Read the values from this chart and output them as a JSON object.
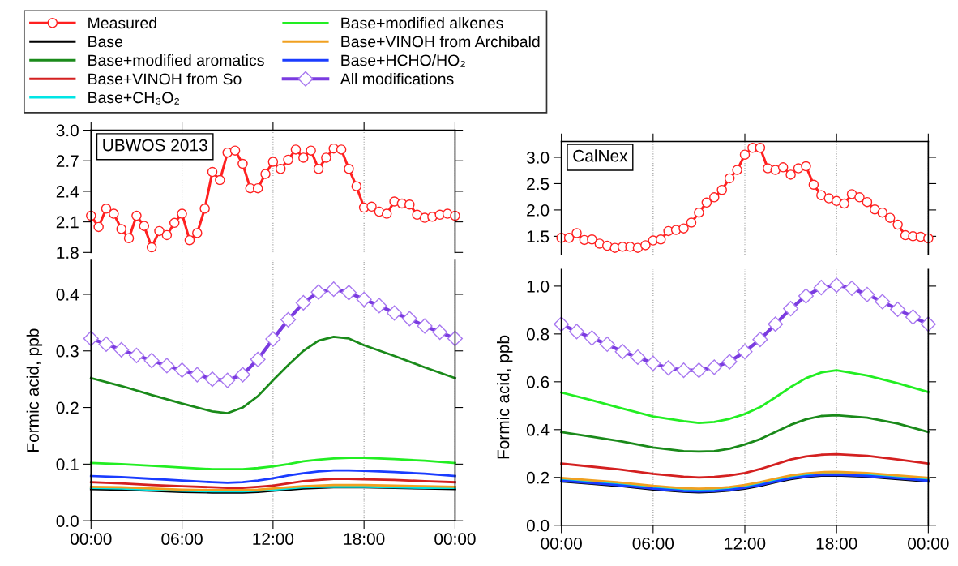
{
  "chart_data": [
    {
      "type": "line",
      "annotations": [
        "UBWOS 2013"
      ],
      "xlim": [
        0,
        24
      ],
      "xticks": [
        0,
        6,
        12,
        18,
        24
      ],
      "ylim": [
        1.8,
        3.0
      ],
      "yticks": [
        1.8,
        2.1,
        2.4,
        2.7,
        {
          "value": 3,
          "label": "3.0"
        }
      ],
      "tick_labels": "y",
      "grid": "x",
      "legend": "top left",
      "line_style": "solid",
      "series": [
        {
          "name": "Measured",
          "color": "#ff2020",
          "marker": "circle",
          "x": [
            0,
            0.5,
            1,
            1.5,
            2,
            2.5,
            3,
            3.5,
            4,
            4.5,
            5,
            5.5,
            6,
            6.5,
            7,
            7.5,
            8,
            8.5,
            9,
            9.5,
            10,
            10.5,
            11,
            11.5,
            12,
            12.5,
            13,
            13.5,
            14,
            14.5,
            15,
            15.5,
            16,
            16.5,
            17,
            17.5,
            18,
            18.5,
            19,
            19.5,
            20,
            20.5,
            21,
            21.5,
            22,
            22.5,
            23,
            23.5,
            24
          ],
          "values": [
            2.16,
            2.05,
            2.23,
            2.18,
            2.03,
            1.94,
            2.16,
            2.06,
            1.85,
            2.01,
            1.97,
            2.09,
            2.18,
            1.92,
            1.99,
            2.23,
            2.59,
            2.51,
            2.78,
            2.8,
            2.67,
            2.43,
            2.43,
            2.57,
            2.69,
            2.62,
            2.71,
            2.81,
            2.73,
            2.8,
            2.62,
            2.73,
            2.82,
            2.81,
            2.62,
            2.45,
            2.24,
            2.25,
            2.2,
            2.18,
            2.3,
            2.28,
            2.27,
            2.17,
            2.14,
            2.15,
            2.17,
            2.18,
            2.16
          ]
        }
      ]
    },
    {
      "type": "line",
      "ylabel": "Formic acid, ppb",
      "xlim": [
        0,
        24
      ],
      "xticks": [
        {
          "value": 0,
          "label": "00:00"
        },
        {
          "value": 6,
          "label": "06:00"
        },
        {
          "value": 12,
          "label": "12:00"
        },
        {
          "value": 18,
          "label": "18:00"
        },
        {
          "value": 24,
          "label": "00:00"
        }
      ],
      "ylim": [
        0,
        0.46
      ],
      "yticks": [
        {
          "value": 0,
          "label": "0.0"
        },
        0.1,
        0.2,
        0.3,
        0.4
      ],
      "grid": "x",
      "legend": "top left",
      "line_style": "solid",
      "series": [
        {
          "name": "Base",
          "color": "#000000",
          "x": [
            0,
            2,
            4,
            6,
            8,
            9,
            10,
            11,
            12,
            13,
            14,
            15,
            16,
            17,
            18,
            20,
            22,
            24
          ],
          "values": [
            0.056,
            0.055,
            0.053,
            0.051,
            0.05,
            0.05,
            0.05,
            0.051,
            0.053,
            0.055,
            0.057,
            0.058,
            0.059,
            0.059,
            0.059,
            0.058,
            0.057,
            0.056
          ]
        },
        {
          "name": "Base+modified aromatics",
          "color": "#1a8a1a",
          "x": [
            0,
            2,
            4,
            6,
            8,
            9,
            10,
            11,
            12,
            13,
            14,
            15,
            16,
            17,
            18,
            20,
            22,
            24
          ],
          "values": [
            0.252,
            0.238,
            0.222,
            0.207,
            0.193,
            0.19,
            0.2,
            0.22,
            0.248,
            0.275,
            0.3,
            0.318,
            0.325,
            0.322,
            0.31,
            0.291,
            0.271,
            0.252
          ]
        },
        {
          "name": "Base+VINOH from So",
          "color": "#d42020",
          "x": [
            0,
            2,
            4,
            6,
            8,
            9,
            10,
            11,
            12,
            13,
            14,
            15,
            16,
            17,
            18,
            20,
            22,
            24
          ],
          "values": [
            0.068,
            0.066,
            0.063,
            0.061,
            0.059,
            0.058,
            0.058,
            0.06,
            0.062,
            0.066,
            0.07,
            0.072,
            0.074,
            0.074,
            0.073,
            0.072,
            0.07,
            0.068
          ]
        },
        {
          "name": "Base+CH₃O₂",
          "color": "#00e5e5",
          "x": [
            0,
            2,
            4,
            6,
            8,
            9,
            10,
            11,
            12,
            13,
            14,
            15,
            16,
            17,
            18,
            20,
            22,
            24
          ],
          "values": [
            0.058,
            0.057,
            0.055,
            0.053,
            0.052,
            0.052,
            0.052,
            0.053,
            0.055,
            0.057,
            0.059,
            0.06,
            0.06,
            0.06,
            0.06,
            0.059,
            0.058,
            0.058
          ]
        },
        {
          "name": "Base+modified alkenes",
          "color": "#22ee22",
          "x": [
            0,
            2,
            4,
            6,
            8,
            9,
            10,
            11,
            12,
            13,
            14,
            15,
            16,
            17,
            18,
            20,
            22,
            24
          ],
          "values": [
            0.102,
            0.1,
            0.097,
            0.094,
            0.091,
            0.091,
            0.091,
            0.093,
            0.096,
            0.1,
            0.105,
            0.108,
            0.11,
            0.111,
            0.111,
            0.109,
            0.106,
            0.102
          ]
        },
        {
          "name": "Base+VINOH from Archibald",
          "color": "#f0a020",
          "x": [
            0,
            2,
            4,
            6,
            8,
            9,
            10,
            11,
            12,
            13,
            14,
            15,
            16,
            17,
            18,
            20,
            22,
            24
          ],
          "values": [
            0.06,
            0.059,
            0.057,
            0.055,
            0.054,
            0.054,
            0.054,
            0.055,
            0.057,
            0.059,
            0.061,
            0.062,
            0.063,
            0.063,
            0.063,
            0.062,
            0.061,
            0.06
          ]
        },
        {
          "name": "Base+HCHO/HO₂",
          "color": "#1a3cff",
          "x": [
            0,
            2,
            4,
            6,
            8,
            9,
            10,
            11,
            12,
            13,
            14,
            15,
            16,
            17,
            18,
            20,
            22,
            24
          ],
          "values": [
            0.079,
            0.077,
            0.074,
            0.071,
            0.068,
            0.067,
            0.068,
            0.071,
            0.075,
            0.08,
            0.084,
            0.087,
            0.089,
            0.089,
            0.088,
            0.086,
            0.083,
            0.079
          ]
        },
        {
          "name": "All modifications",
          "color": "#7a3be0",
          "marker": "diamond",
          "x": [
            0,
            1,
            2,
            3,
            4,
            5,
            6,
            7,
            8,
            9,
            10,
            11,
            12,
            13,
            14,
            15,
            16,
            17,
            18,
            19,
            20,
            21,
            22,
            23,
            24
          ],
          "values": [
            0.322,
            0.312,
            0.302,
            0.292,
            0.283,
            0.274,
            0.266,
            0.258,
            0.25,
            0.248,
            0.258,
            0.285,
            0.321,
            0.355,
            0.385,
            0.404,
            0.409,
            0.403,
            0.391,
            0.38,
            0.367,
            0.357,
            0.344,
            0.333,
            0.322
          ]
        }
      ]
    },
    {
      "type": "line",
      "annotations": [
        "CalNex"
      ],
      "xlim": [
        0,
        24
      ],
      "xticks": [
        0,
        6,
        12,
        18,
        24
      ],
      "ylim": [
        1.15,
        3.3
      ],
      "yticks": [
        1.5,
        {
          "value": 2,
          "label": "2.0"
        },
        2.5,
        {
          "value": 3,
          "label": "3.0"
        }
      ],
      "tick_labels": "y",
      "grid": "x",
      "line_style": "solid",
      "series": [
        {
          "color": "#ff2020",
          "marker": "circle",
          "x": [
            0,
            0.5,
            1,
            1.5,
            2,
            2.5,
            3,
            3.5,
            4,
            4.5,
            5,
            5.5,
            6,
            6.5,
            7,
            7.5,
            8,
            8.5,
            9,
            9.5,
            10,
            10.5,
            11,
            11.5,
            12,
            12.5,
            13,
            13.5,
            14,
            14.5,
            15,
            15.5,
            16,
            16.5,
            17,
            17.5,
            18,
            18.5,
            19,
            19.5,
            20,
            20.5,
            21,
            21.5,
            22,
            22.5,
            23,
            23.5,
            24
          ],
          "values": [
            1.47,
            1.47,
            1.56,
            1.43,
            1.44,
            1.36,
            1.32,
            1.28,
            1.3,
            1.3,
            1.28,
            1.33,
            1.42,
            1.44,
            1.6,
            1.62,
            1.65,
            1.76,
            1.95,
            2.14,
            2.24,
            2.38,
            2.6,
            2.76,
            3.05,
            3.18,
            3.18,
            2.79,
            2.76,
            2.81,
            2.67,
            2.79,
            2.83,
            2.48,
            2.28,
            2.22,
            2.17,
            2.12,
            2.3,
            2.24,
            2.15,
            2.01,
            1.95,
            1.85,
            1.72,
            1.52,
            1.5,
            1.49,
            1.46
          ]
        }
      ]
    },
    {
      "type": "line",
      "ylabel": "Formic acid, ppb",
      "xlim": [
        0,
        24
      ],
      "xticks": [
        {
          "value": 0,
          "label": "00:00"
        },
        {
          "value": 6,
          "label": "06:00"
        },
        {
          "value": 12,
          "label": "12:00"
        },
        {
          "value": 18,
          "label": "18:00"
        },
        {
          "value": 24,
          "label": "00:00"
        }
      ],
      "ylim": [
        0,
        1.07
      ],
      "yticks": [
        {
          "value": 0,
          "label": "0.0"
        },
        0.2,
        0.4,
        0.6,
        0.8,
        {
          "value": 1,
          "label": "1.0"
        }
      ],
      "grid": "x",
      "line_style": "solid",
      "series": [
        {
          "color": "#000000",
          "x": [
            0,
            2,
            4,
            6,
            8,
            9,
            10,
            11,
            12,
            13,
            14,
            15,
            16,
            17,
            18,
            20,
            22,
            24
          ],
          "values": [
            0.183,
            0.173,
            0.163,
            0.15,
            0.14,
            0.138,
            0.14,
            0.145,
            0.153,
            0.165,
            0.18,
            0.193,
            0.202,
            0.207,
            0.208,
            0.203,
            0.193,
            0.183
          ]
        },
        {
          "color": "#1a8a1a",
          "x": [
            0,
            2,
            4,
            6,
            8,
            9,
            10,
            11,
            12,
            13,
            14,
            15,
            16,
            17,
            18,
            20,
            22,
            24
          ],
          "values": [
            0.39,
            0.37,
            0.35,
            0.325,
            0.31,
            0.308,
            0.31,
            0.32,
            0.338,
            0.36,
            0.39,
            0.42,
            0.443,
            0.457,
            0.46,
            0.45,
            0.425,
            0.39
          ]
        },
        {
          "color": "#d42020",
          "x": [
            0,
            2,
            4,
            6,
            8,
            9,
            10,
            11,
            12,
            13,
            14,
            15,
            16,
            17,
            18,
            20,
            22,
            24
          ],
          "values": [
            0.258,
            0.245,
            0.232,
            0.215,
            0.203,
            0.2,
            0.202,
            0.208,
            0.218,
            0.235,
            0.255,
            0.275,
            0.288,
            0.295,
            0.297,
            0.29,
            0.275,
            0.258
          ]
        },
        {
          "color": "#00e5e5",
          "x": [
            0,
            2,
            4,
            6,
            8,
            9,
            10,
            11,
            12,
            13,
            14,
            15,
            16,
            17,
            18,
            20,
            22,
            24
          ],
          "values": [
            0.192,
            0.182,
            0.172,
            0.159,
            0.149,
            0.147,
            0.149,
            0.154,
            0.162,
            0.174,
            0.189,
            0.202,
            0.211,
            0.216,
            0.217,
            0.212,
            0.202,
            0.192
          ]
        },
        {
          "color": "#22ee22",
          "x": [
            0,
            2,
            4,
            6,
            8,
            9,
            10,
            11,
            12,
            13,
            14,
            15,
            16,
            17,
            18,
            20,
            22,
            24
          ],
          "values": [
            0.555,
            0.523,
            0.488,
            0.455,
            0.435,
            0.428,
            0.432,
            0.445,
            0.465,
            0.494,
            0.535,
            0.578,
            0.615,
            0.639,
            0.648,
            0.626,
            0.594,
            0.557
          ]
        },
        {
          "color": "#f0a020",
          "x": [
            0,
            2,
            4,
            6,
            8,
            9,
            10,
            11,
            12,
            13,
            14,
            15,
            16,
            17,
            18,
            20,
            22,
            24
          ],
          "values": [
            0.198,
            0.188,
            0.178,
            0.165,
            0.155,
            0.153,
            0.155,
            0.16,
            0.168,
            0.18,
            0.195,
            0.208,
            0.217,
            0.222,
            0.223,
            0.218,
            0.208,
            0.198
          ]
        },
        {
          "color": "#1a3cff",
          "x": [
            0,
            2,
            4,
            6,
            8,
            9,
            10,
            11,
            12,
            13,
            14,
            15,
            16,
            17,
            18,
            20,
            22,
            24
          ],
          "values": [
            0.186,
            0.176,
            0.166,
            0.153,
            0.143,
            0.141,
            0.143,
            0.148,
            0.156,
            0.168,
            0.183,
            0.196,
            0.205,
            0.21,
            0.211,
            0.206,
            0.196,
            0.186
          ]
        },
        {
          "color": "#7a3be0",
          "marker": "diamond",
          "x": [
            0,
            1,
            2,
            3,
            4,
            5,
            6,
            7,
            8,
            9,
            10,
            11,
            12,
            13,
            14,
            15,
            16,
            17,
            18,
            19,
            20,
            21,
            22,
            23,
            24
          ],
          "values": [
            0.841,
            0.81,
            0.783,
            0.757,
            0.726,
            0.703,
            0.677,
            0.658,
            0.648,
            0.648,
            0.661,
            0.684,
            0.726,
            0.777,
            0.841,
            0.906,
            0.959,
            0.994,
            1.004,
            0.991,
            0.965,
            0.935,
            0.903,
            0.871,
            0.841
          ]
        }
      ]
    }
  ]
}
